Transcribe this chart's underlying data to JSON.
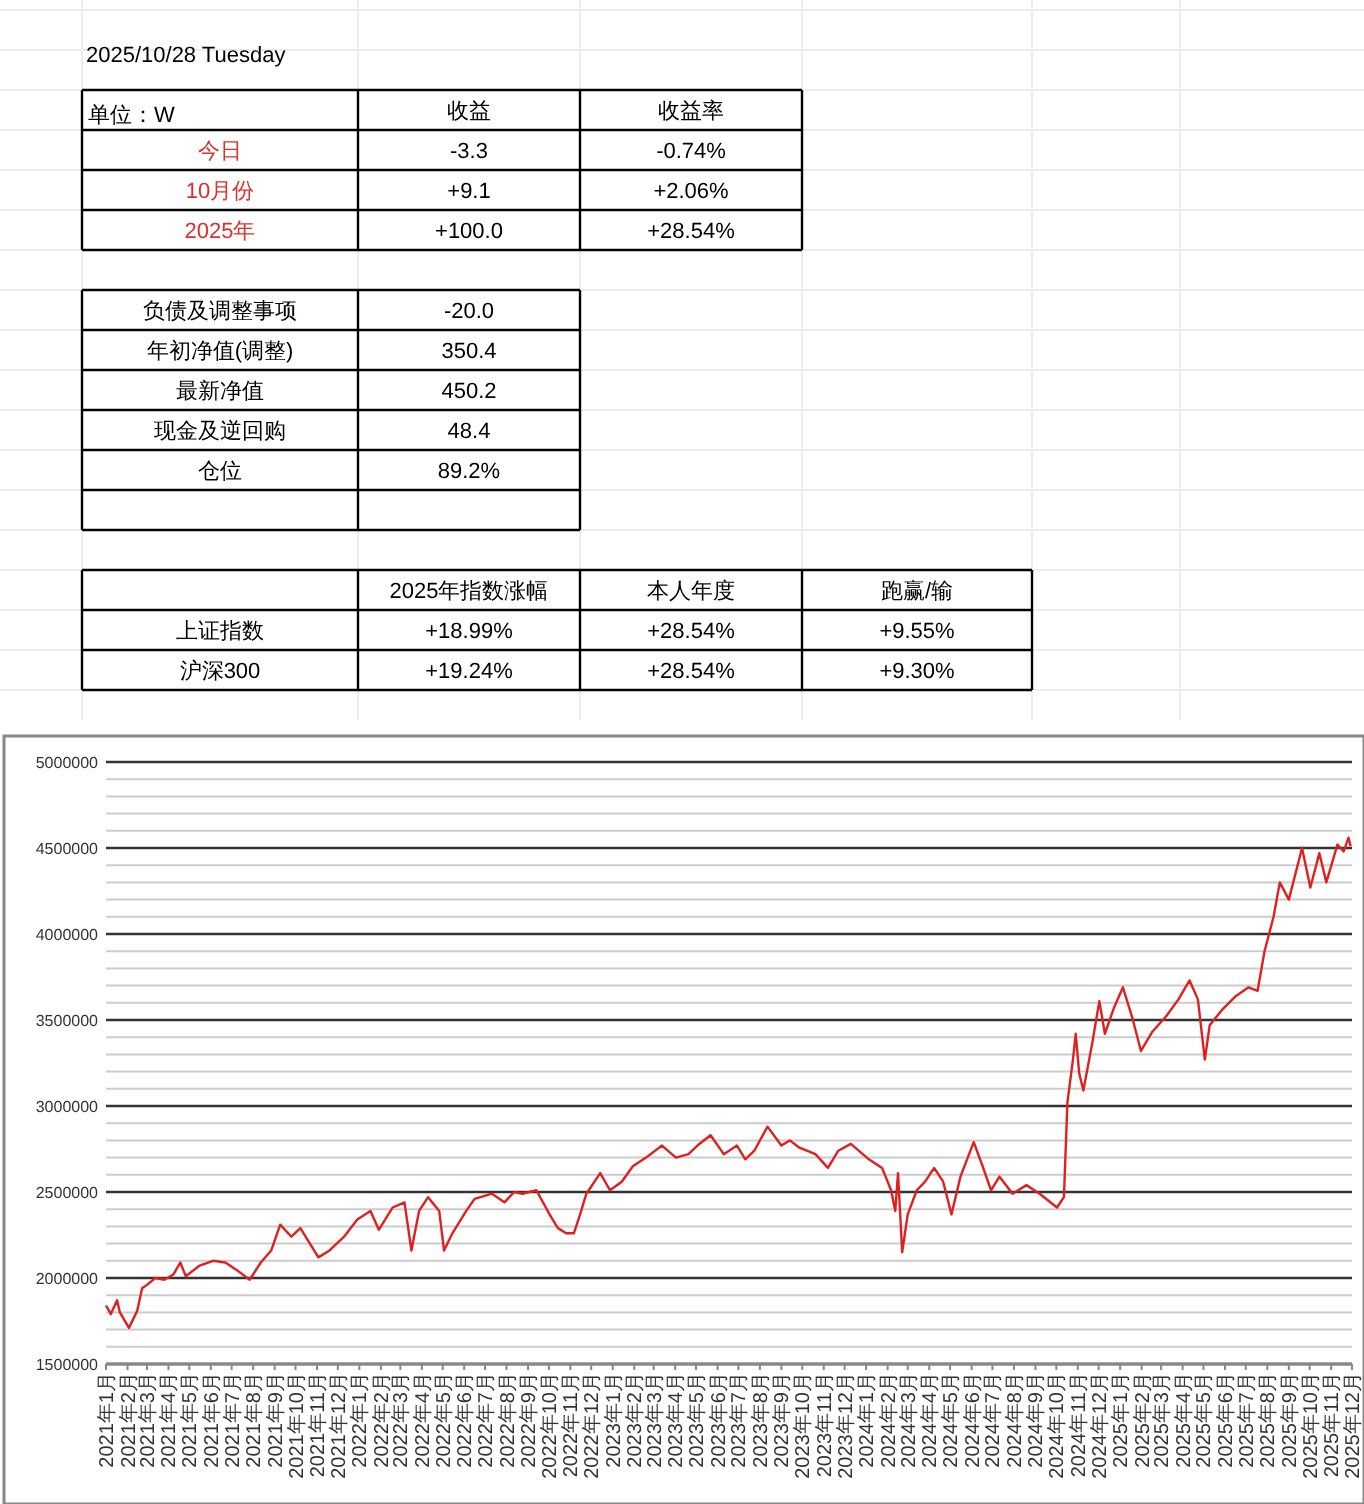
{
  "chart_data": [
    {
      "type": "other",
      "title": "2025/10/28  Tuesday",
      "ylabel": "单位：W",
      "color": "#d9312b",
      "categories": [
        "收益",
        "收益率"
      ],
      "y_categories": [
        "今日",
        "10月份",
        "2025年"
      ],
      "cell_labels": [
        [
          "-3.3",
          "-0.74%"
        ],
        [
          "+9.1",
          "+2.06%"
        ],
        [
          "+100.0",
          "+28.54%"
        ]
      ]
    },
    {
      "type": "other",
      "y_categories": [
        "负债及调整事项",
        "年初净值(调整)",
        "最新净值",
        "现金及逆回购",
        "仓位",
        null
      ],
      "cell_labels": [
        [
          "-20.0"
        ],
        [
          "350.4"
        ],
        [
          "450.2"
        ],
        [
          "48.4"
        ],
        [
          "89.2%"
        ],
        [
          null
        ]
      ]
    },
    {
      "type": "other",
      "categories": [
        "2025年指数涨幅",
        "本人年度",
        "跑赢/输"
      ],
      "y_categories": [
        "上证指数",
        "沪深300"
      ],
      "cell_labels": [
        [
          "+18.99%",
          "+28.54%",
          "+9.55%"
        ],
        [
          "+19.24%",
          "+28.54%",
          "+9.30%"
        ]
      ]
    },
    {
      "type": "line",
      "xlim": [
        "2021-01",
        "2025-12"
      ],
      "xticks": [
        {
          "value": "2021-01",
          "label": "2021年1月"
        },
        {
          "value": "2021-02",
          "label": "2021年2月"
        },
        {
          "value": "2021-03",
          "label": "2021年3月"
        },
        {
          "value": "2021-04",
          "label": "2021年4月"
        },
        {
          "value": "2021-05",
          "label": "2021年5月"
        },
        {
          "value": "2021-06",
          "label": "2021年6月"
        },
        {
          "value": "2021-07",
          "label": "2021年7月"
        },
        {
          "value": "2021-08",
          "label": "2021年8月"
        },
        {
          "value": "2021-09",
          "label": "2021年9月"
        },
        {
          "value": "2021-10",
          "label": "2021年10月"
        },
        {
          "value": "2021-11",
          "label": "2021年11月"
        },
        {
          "value": "2021-12",
          "label": "2021年12月"
        },
        {
          "value": "2022-01",
          "label": "2022年1月"
        },
        {
          "value": "2022-02",
          "label": "2022年2月"
        },
        {
          "value": "2022-03",
          "label": "2022年3月"
        },
        {
          "value": "2022-04",
          "label": "2022年4月"
        },
        {
          "value": "2022-05",
          "label": "2022年5月"
        },
        {
          "value": "2022-06",
          "label": "2022年6月"
        },
        {
          "value": "2022-07",
          "label": "2022年7月"
        },
        {
          "value": "2022-08",
          "label": "2022年8月"
        },
        {
          "value": "2022-09",
          "label": "2022年9月"
        },
        {
          "value": "2022-10",
          "label": "2022年10月"
        },
        {
          "value": "2022-11",
          "label": "2022年11月"
        },
        {
          "value": "2022-12",
          "label": "2022年12月"
        },
        {
          "value": "2023-01",
          "label": "2023年1月"
        },
        {
          "value": "2023-02",
          "label": "2023年2月"
        },
        {
          "value": "2023-03",
          "label": "2023年3月"
        },
        {
          "value": "2023-04",
          "label": "2023年4月"
        },
        {
          "value": "2023-05",
          "label": "2023年5月"
        },
        {
          "value": "2023-06",
          "label": "2023年6月"
        },
        {
          "value": "2023-07",
          "label": "2023年7月"
        },
        {
          "value": "2023-08",
          "label": "2023年8月"
        },
        {
          "value": "2023-09",
          "label": "2023年9月"
        },
        {
          "value": "2023-10",
          "label": "2023年10月"
        },
        {
          "value": "2023-11",
          "label": "2023年11月"
        },
        {
          "value": "2023-12",
          "label": "2023年12月"
        },
        {
          "value": "2024-01",
          "label": "2024年1月"
        },
        {
          "value": "2024-02",
          "label": "2024年2月"
        },
        {
          "value": "2024-03",
          "label": "2024年3月"
        },
        {
          "value": "2024-04",
          "label": "2024年4月"
        },
        {
          "value": "2024-05",
          "label": "2024年5月"
        },
        {
          "value": "2024-06",
          "label": "2024年6月"
        },
        {
          "value": "2024-07",
          "label": "2024年7月"
        },
        {
          "value": "2024-08",
          "label": "2024年8月"
        },
        {
          "value": "2024-09",
          "label": "2024年9月"
        },
        {
          "value": "2024-10",
          "label": "2024年10月"
        },
        {
          "value": "2024-11",
          "label": "2024年11月"
        },
        {
          "value": "2024-12",
          "label": "2024年12月"
        },
        {
          "value": "2025-01",
          "label": "2025年1月"
        },
        {
          "value": "2025-02",
          "label": "2025年2月"
        },
        {
          "value": "2025-03",
          "label": "2025年3月"
        },
        {
          "value": "2025-04",
          "label": "2025年4月"
        },
        {
          "value": "2025-05",
          "label": "2025年5月"
        },
        {
          "value": "2025-06",
          "label": "2025年6月"
        },
        {
          "value": "2025-07",
          "label": "2025年7月"
        },
        {
          "value": "2025-08",
          "label": "2025年8月"
        },
        {
          "value": "2025-09",
          "label": "2025年9月"
        },
        {
          "value": "2025-10",
          "label": "2025年10月"
        },
        {
          "value": "2025-11",
          "label": "2025年11月"
        },
        {
          "value": "2025-12",
          "label": "2025年12月"
        }
      ],
      "ylim": [
        1500000,
        5000000
      ],
      "yticks": [
        1500000,
        {
          "value": 1600000,
          "label": null
        },
        {
          "value": 1700000,
          "label": null
        },
        {
          "value": 1800000,
          "label": null
        },
        {
          "value": 1900000,
          "label": null
        },
        2000000,
        {
          "value": 2100000,
          "label": null
        },
        {
          "value": 2200000,
          "label": null
        },
        {
          "value": 2300000,
          "label": null
        },
        {
          "value": 2400000,
          "label": null
        },
        2500000,
        {
          "value": 2600000,
          "label": null
        },
        {
          "value": 2700000,
          "label": null
        },
        {
          "value": 2800000,
          "label": null
        },
        {
          "value": 2900000,
          "label": null
        },
        3000000,
        {
          "value": 3100000,
          "label": null
        },
        {
          "value": 3200000,
          "label": null
        },
        {
          "value": 3300000,
          "label": null
        },
        {
          "value": 3400000,
          "label": null
        },
        3500000,
        {
          "value": 3600000,
          "label": null
        },
        {
          "value": 3700000,
          "label": null
        },
        {
          "value": 3800000,
          "label": null
        },
        {
          "value": 3900000,
          "label": null
        },
        4000000,
        {
          "value": 4100000,
          "label": null
        },
        {
          "value": 4200000,
          "label": null
        },
        {
          "value": 4300000,
          "label": null
        },
        {
          "value": 4400000,
          "label": null
        },
        4500000,
        {
          "value": 4600000,
          "label": null
        },
        {
          "value": 4700000,
          "label": null
        },
        {
          "value": 4800000,
          "label": null
        },
        {
          "value": 4900000,
          "label": null
        },
        5000000
      ],
      "grid": "y",
      "series": [
        {
          "color": "#e02020",
          "x": [
            "2021-01-01",
            "2021-01-08",
            "2021-01-17",
            "2021-01-21",
            "2021-02-03",
            "2021-02-15",
            "2021-02-22",
            "2021-03-01",
            "2021-03-13",
            "2021-03-26",
            "2021-04-08",
            "2021-04-18",
            "2021-04-26",
            "2021-05-15",
            "2021-06-04",
            "2021-06-22",
            "2021-07-07",
            "2021-07-27",
            "2021-08-12",
            "2021-08-27",
            "2021-09-09",
            "2021-09-25",
            "2021-10-08",
            "2021-11-03",
            "2021-11-19",
            "2021-12-10",
            "2021-12-29",
            "2022-01-17",
            "2022-01-29",
            "2022-02-18",
            "2022-03-07",
            "2022-03-17",
            "2022-03-28",
            "2022-04-10",
            "2022-04-26",
            "2022-05-03",
            "2022-05-15",
            "2022-06-04",
            "2022-06-16",
            "2022-07-11",
            "2022-07-29",
            "2022-08-12",
            "2022-08-24",
            "2022-09-13",
            "2022-10-02",
            "2022-10-14",
            "2022-10-26",
            "2022-11-06",
            "2022-11-15",
            "2022-11-24",
            "2022-12-14",
            "2022-12-28",
            "2023-01-14",
            "2023-01-30",
            "2023-02-18",
            "2023-03-13",
            "2023-04-02",
            "2023-04-20",
            "2023-05-03",
            "2023-05-22",
            "2023-06-10",
            "2023-06-29",
            "2023-07-11",
            "2023-07-24",
            "2023-08-12",
            "2023-09-01",
            "2023-09-13",
            "2023-09-26",
            "2023-10-20",
            "2023-11-07",
            "2023-11-22",
            "2023-12-10",
            "2024-01-05",
            "2024-01-24",
            "2024-02-06",
            "2024-02-12",
            "2024-02-16",
            "2024-02-22",
            "2024-03-01",
            "2024-03-14",
            "2024-03-26",
            "2024-04-08",
            "2024-04-21",
            "2024-05-03",
            "2024-05-16",
            "2024-06-04",
            "2024-06-16",
            "2024-06-29",
            "2024-07-11",
            "2024-07-30",
            "2024-08-19",
            "2024-09-07",
            "2024-10-02",
            "2024-10-12",
            "2024-10-17",
            "2024-10-25",
            "2024-10-29",
            "2024-11-03",
            "2024-11-09",
            "2024-11-22",
            "2024-12-02",
            "2024-12-10",
            "2024-12-23",
            "2025-01-05",
            "2025-01-18",
            "2025-01-31",
            "2025-02-16",
            "2025-03-08",
            "2025-03-26",
            "2025-04-11",
            "2025-04-23",
            "2025-05-03",
            "2025-05-10",
            "2025-05-28",
            "2025-06-17",
            "2025-07-05",
            "2025-07-18",
            "2025-07-28",
            "2025-08-10",
            "2025-08-19",
            "2025-09-01",
            "2025-09-20",
            "2025-10-02",
            "2025-10-15",
            "2025-10-25",
            "2025-11-10",
            "2025-11-19",
            "2025-11-26",
            "2025-11-29"
          ],
          "values": [
            1840000,
            1790000,
            1870000,
            1800000,
            1710000,
            1810000,
            1940000,
            1960000,
            2000000,
            1990000,
            2020000,
            2090000,
            2010000,
            2070000,
            2100000,
            2090000,
            2050000,
            1990000,
            2090000,
            2160000,
            2310000,
            2240000,
            2290000,
            2120000,
            2160000,
            2240000,
            2340000,
            2390000,
            2280000,
            2410000,
            2440000,
            2160000,
            2390000,
            2470000,
            2390000,
            2160000,
            2260000,
            2390000,
            2460000,
            2490000,
            2440000,
            2500000,
            2490000,
            2510000,
            2370000,
            2290000,
            2260000,
            2260000,
            2370000,
            2490000,
            2610000,
            2510000,
            2560000,
            2650000,
            2700000,
            2770000,
            2700000,
            2720000,
            2770000,
            2830000,
            2720000,
            2770000,
            2690000,
            2740000,
            2880000,
            2770000,
            2800000,
            2760000,
            2720000,
            2640000,
            2740000,
            2780000,
            2690000,
            2640000,
            2510000,
            2390000,
            2610000,
            2150000,
            2370000,
            2510000,
            2560000,
            2640000,
            2560000,
            2370000,
            2590000,
            2790000,
            2660000,
            2510000,
            2590000,
            2490000,
            2540000,
            2490000,
            2410000,
            2470000,
            3020000,
            3270000,
            3420000,
            3190000,
            3090000,
            3370000,
            3610000,
            3420000,
            3570000,
            3690000,
            3520000,
            3320000,
            3430000,
            3520000,
            3620000,
            3730000,
            3620000,
            3270000,
            3470000,
            3560000,
            3640000,
            3690000,
            3670000,
            3900000,
            4100000,
            4300000,
            4200000,
            4500000,
            4270000,
            4470000,
            4300000,
            4520000,
            4480000,
            4560000,
            4510000
          ]
        }
      ]
    }
  ]
}
